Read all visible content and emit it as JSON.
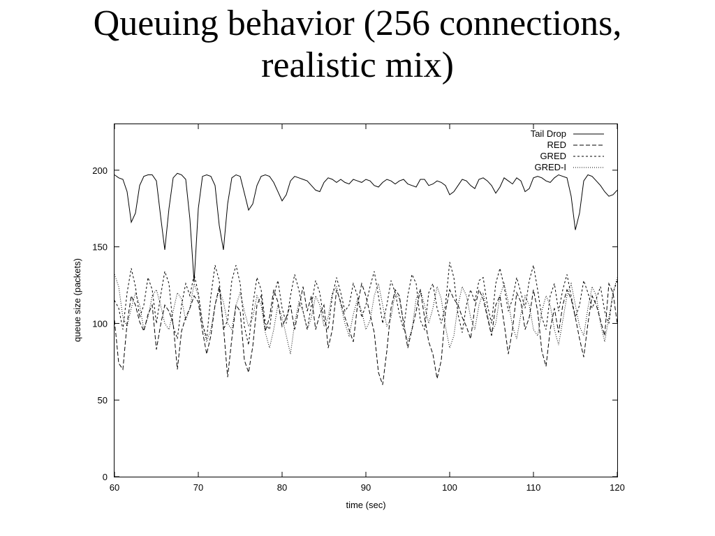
{
  "slide": {
    "title_line1": "Queuing behavior (256 connections,",
    "title_line2": "realistic mix)"
  },
  "chart_data": {
    "type": "line",
    "xlabel": "time (sec)",
    "ylabel": "queue size (packets)",
    "xlim": [
      60,
      120
    ],
    "ylim": [
      0,
      230
    ],
    "xticks": [
      60,
      70,
      80,
      90,
      100,
      110,
      120
    ],
    "yticks": [
      0,
      50,
      100,
      150,
      200
    ],
    "legend_position": "top-right",
    "grid": false,
    "series": [
      {
        "name": "Tail Drop",
        "dash": "solid",
        "x": [
          60,
          60.5,
          61,
          61.5,
          62,
          62.5,
          63,
          63.5,
          64,
          64.5,
          65,
          65.5,
          66,
          66.5,
          67,
          67.5,
          68,
          68.5,
          69,
          69.5,
          70,
          70.5,
          71,
          71.5,
          72,
          72.5,
          73,
          73.5,
          74,
          74.5,
          75,
          75.5,
          76,
          76.5,
          77,
          77.5,
          78,
          78.5,
          79,
          79.5,
          80,
          80.5,
          81,
          81.5,
          82,
          82.5,
          83,
          83.5,
          84,
          84.5,
          85,
          85.5,
          86,
          86.5,
          87,
          87.5,
          88,
          88.5,
          89,
          89.5,
          90,
          90.5,
          91,
          91.5,
          92,
          92.5,
          93,
          93.5,
          94,
          94.5,
          95,
          95.5,
          96,
          96.5,
          97,
          97.5,
          98,
          98.5,
          99,
          99.5,
          100,
          100.5,
          101,
          101.5,
          102,
          102.5,
          103,
          103.5,
          104,
          104.5,
          105,
          105.5,
          106,
          106.5,
          107,
          107.5,
          108,
          108.5,
          109,
          109.5,
          110,
          110.5,
          111,
          111.5,
          112,
          112.5,
          113,
          113.5,
          114,
          114.5,
          115,
          115.5,
          116,
          116.5,
          117,
          117.5,
          118,
          118.5,
          119,
          119.5,
          120
        ],
        "values": [
          197,
          195,
          194,
          186,
          166,
          172,
          190,
          196,
          197,
          197,
          193,
          170,
          148,
          175,
          195,
          198,
          197,
          194,
          168,
          127,
          175,
          196,
          197,
          196,
          190,
          164,
          148,
          178,
          195,
          197,
          196,
          185,
          174,
          178,
          190,
          196,
          197,
          196,
          192,
          186,
          180,
          184,
          193,
          196,
          195,
          194,
          193,
          190,
          187,
          186,
          192,
          195,
          194,
          192,
          194,
          192,
          191,
          194,
          193,
          192,
          194,
          193,
          190,
          189,
          192,
          194,
          193,
          191,
          193,
          194,
          191,
          190,
          189,
          194,
          194,
          190,
          191,
          193,
          192,
          190,
          184,
          186,
          190,
          194,
          193,
          190,
          188,
          194,
          195,
          193,
          190,
          185,
          189,
          195,
          193,
          191,
          195,
          193,
          186,
          188,
          195,
          196,
          195,
          193,
          192,
          195,
          197,
          196,
          195,
          183,
          161,
          172,
          193,
          197,
          196,
          193,
          190,
          186,
          183,
          184,
          187
        ]
      },
      {
        "name": "RED",
        "dash": "long-dash",
        "x": [
          60,
          60.5,
          61,
          61.5,
          62,
          62.5,
          63,
          63.5,
          64,
          64.5,
          65,
          65.5,
          66,
          66.5,
          67,
          67.5,
          68,
          68.5,
          69,
          69.5,
          70,
          70.5,
          71,
          71.5,
          72,
          72.5,
          73,
          73.5,
          74,
          74.5,
          75,
          75.5,
          76,
          76.5,
          77,
          77.5,
          78,
          78.5,
          79,
          79.5,
          80,
          80.5,
          81,
          81.5,
          82,
          82.5,
          83,
          83.5,
          84,
          84.5,
          85,
          85.5,
          86,
          86.5,
          87,
          87.5,
          88,
          88.5,
          89,
          89.5,
          90,
          90.5,
          91,
          91.5,
          92,
          92.5,
          93,
          93.5,
          94,
          94.5,
          95,
          95.5,
          96,
          96.5,
          97,
          97.5,
          98,
          98.5,
          99,
          99.5,
          100,
          100.5,
          101,
          101.5,
          102,
          102.5,
          103,
          103.5,
          104,
          104.5,
          105,
          105.5,
          106,
          106.5,
          107,
          107.5,
          108,
          108.5,
          109,
          109.5,
          110,
          110.5,
          111,
          111.5,
          112,
          112.5,
          113,
          113.5,
          114,
          114.5,
          115,
          115.5,
          116,
          116.5,
          117,
          117.5,
          118,
          118.5,
          119,
          119.5,
          120
        ],
        "values": [
          102,
          74,
          70,
          100,
          118,
          112,
          101,
          95,
          106,
          112,
          83,
          99,
          112,
          108,
          100,
          70,
          95,
          104,
          110,
          118,
          114,
          95,
          80,
          92,
          112,
          124,
          98,
          65,
          90,
          112,
          108,
          76,
          68,
          85,
          112,
          118,
          95,
          104,
          122,
          114,
          98,
          104,
          112,
          96,
          110,
          124,
          108,
          118,
          96,
          106,
          112,
          84,
          96,
          122,
          114,
          104,
          96,
          88,
          112,
          126,
          118,
          106,
          94,
          68,
          60,
          82,
          110,
          122,
          118,
          100,
          84,
          96,
          108,
          122,
          104,
          88,
          80,
          64,
          76,
          108,
          122,
          116,
          112,
          104,
          98,
          90,
          110,
          122,
          116,
          104,
          92,
          112,
          118,
          100,
          80,
          96,
          120,
          114,
          96,
          104,
          122,
          108,
          82,
          72,
          96,
          110,
          94,
          112,
          122,
          116,
          104,
          90,
          78,
          100,
          118,
          112,
          102,
          92,
          126,
          120,
          100
        ]
      },
      {
        "name": "GRED",
        "dash": "short-dash",
        "x": [
          60,
          60.5,
          61,
          61.5,
          62,
          62.5,
          63,
          63.5,
          64,
          64.5,
          65,
          65.5,
          66,
          66.5,
          67,
          67.5,
          68,
          68.5,
          69,
          69.5,
          70,
          70.5,
          71,
          71.5,
          72,
          72.5,
          73,
          73.5,
          74,
          74.5,
          75,
          75.5,
          76,
          76.5,
          77,
          77.5,
          78,
          78.5,
          79,
          79.5,
          80,
          80.5,
          81,
          81.5,
          82,
          82.5,
          83,
          83.5,
          84,
          84.5,
          85,
          85.5,
          86,
          86.5,
          87,
          87.5,
          88,
          88.5,
          89,
          89.5,
          90,
          90.5,
          91,
          91.5,
          92,
          92.5,
          93,
          93.5,
          94,
          94.5,
          95,
          95.5,
          96,
          96.5,
          97,
          97.5,
          98,
          98.5,
          99,
          99.5,
          100,
          100.5,
          101,
          101.5,
          102,
          102.5,
          103,
          103.5,
          104,
          104.5,
          105,
          105.5,
          106,
          106.5,
          107,
          107.5,
          108,
          108.5,
          109,
          109.5,
          110,
          110.5,
          111,
          111.5,
          112,
          112.5,
          113,
          113.5,
          114,
          114.5,
          115,
          115.5,
          116,
          116.5,
          117,
          117.5,
          118,
          118.5,
          119,
          119.5,
          120
        ],
        "values": [
          115,
          110,
          96,
          120,
          136,
          124,
          104,
          112,
          130,
          122,
          100,
          118,
          134,
          126,
          98,
          90,
          112,
          126,
          118,
          132,
          120,
          100,
          90,
          118,
          138,
          128,
          96,
          102,
          128,
          138,
          126,
          98,
          86,
          112,
          130,
          122,
          100,
          96,
          118,
          128,
          110,
          100,
          118,
          132,
          122,
          108,
          96,
          112,
          128,
          120,
          102,
          96,
          118,
          130,
          120,
          108,
          112,
          126,
          118,
          104,
          112,
          124,
          134,
          118,
          100,
          112,
          128,
          120,
          106,
          96,
          118,
          132,
          126,
          102,
          96,
          120,
          126,
          110,
          100,
          112,
          140,
          130,
          106,
          94,
          112,
          122,
          114,
          128,
          130,
          112,
          100,
          126,
          136,
          124,
          108,
          116,
          130,
          120,
          110,
          128,
          138,
          122,
          104,
          96,
          118,
          126,
          108,
          122,
          132,
          118,
          104,
          112,
          128,
          120,
          110,
          116,
          124,
          108,
          100,
          120,
          128
        ]
      },
      {
        "name": "GRED-I",
        "dash": "dotted",
        "x": [
          60,
          60.5,
          61,
          61.5,
          62,
          62.5,
          63,
          63.5,
          64,
          64.5,
          65,
          65.5,
          66,
          66.5,
          67,
          67.5,
          68,
          68.5,
          69,
          69.5,
          70,
          70.5,
          71,
          71.5,
          72,
          72.5,
          73,
          73.5,
          74,
          74.5,
          75,
          75.5,
          76,
          76.5,
          77,
          77.5,
          78,
          78.5,
          79,
          79.5,
          80,
          80.5,
          81,
          81.5,
          82,
          82.5,
          83,
          83.5,
          84,
          84.5,
          85,
          85.5,
          86,
          86.5,
          87,
          87.5,
          88,
          88.5,
          89,
          89.5,
          90,
          90.5,
          91,
          91.5,
          92,
          92.5,
          93,
          93.5,
          94,
          94.5,
          95,
          95.5,
          96,
          96.5,
          97,
          97.5,
          98,
          98.5,
          99,
          99.5,
          100,
          100.5,
          101,
          101.5,
          102,
          102.5,
          103,
          103.5,
          104,
          104.5,
          105,
          105.5,
          106,
          106.5,
          107,
          107.5,
          108,
          108.5,
          109,
          109.5,
          110,
          110.5,
          111,
          111.5,
          112,
          112.5,
          113,
          113.5,
          114,
          114.5,
          115,
          115.5,
          116,
          116.5,
          117,
          117.5,
          118,
          118.5,
          119,
          119.5,
          120
        ],
        "values": [
          132,
          124,
          104,
          98,
          110,
          120,
          112,
          96,
          104,
          118,
          122,
          112,
          100,
          96,
          108,
          120,
          116,
          102,
          110,
          126,
          118,
          100,
          88,
          96,
          112,
          122,
          114,
          100,
          96,
          112,
          120,
          108,
          98,
          104,
          118,
          112,
          94,
          84,
          96,
          112,
          104,
          92,
          80,
          100,
          114,
          108,
          96,
          104,
          118,
          112,
          98,
          104,
          120,
          124,
          112,
          100,
          92,
          106,
          116,
          108,
          96,
          102,
          118,
          126,
          112,
          98,
          104,
          120,
          116,
          100,
          88,
          96,
          116,
          122,
          112,
          100,
          110,
          124,
          116,
          98,
          84,
          92,
          112,
          124,
          118,
          104,
          96,
          112,
          120,
          106,
          94,
          100,
          118,
          126,
          114,
          98,
          90,
          106,
          118,
          112,
          96,
          92,
          108,
          118,
          112,
          96,
          86,
          102,
          118,
          126,
          112,
          98,
          92,
          110,
          124,
          118,
          100,
          88,
          104,
          120,
          130
        ]
      }
    ]
  }
}
